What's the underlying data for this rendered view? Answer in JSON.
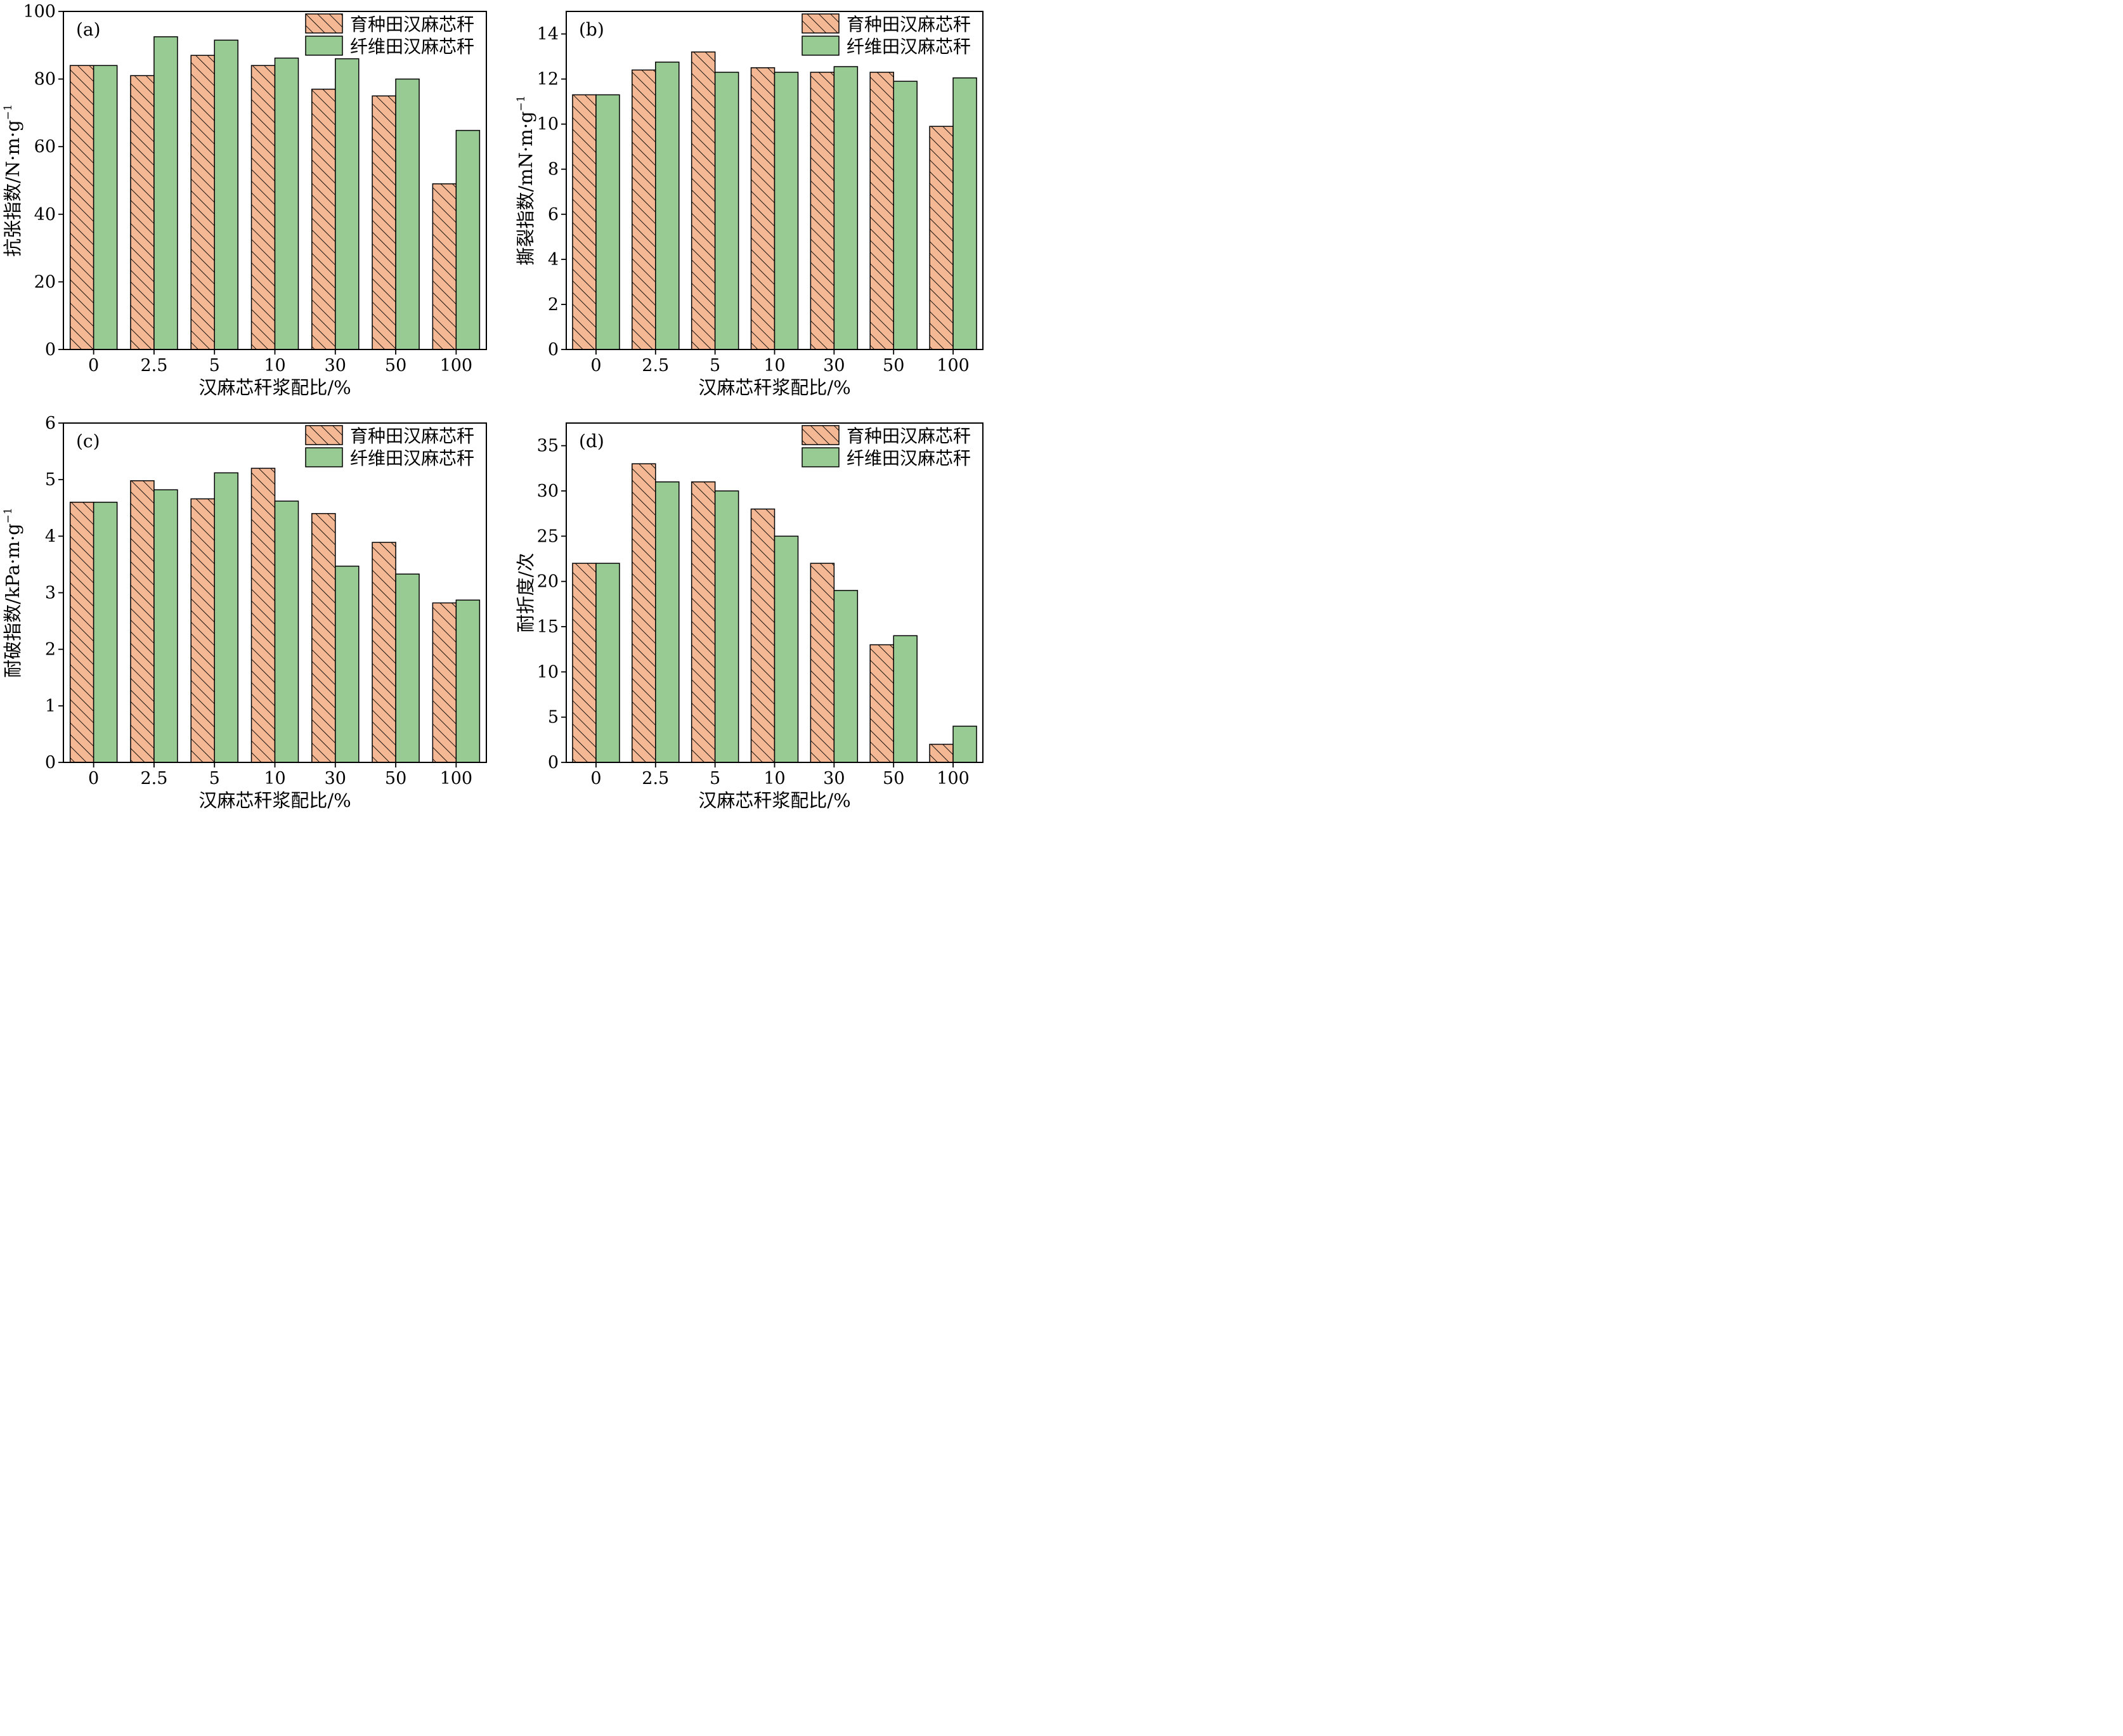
{
  "colors": {
    "breeding_fill": "#f5b894",
    "hatch": "#000000",
    "fiber_fill": "#98cb93",
    "frame": "#000000",
    "background": "#ffffff"
  },
  "chart_data": [
    {
      "type": "bar",
      "panel_label": "(a)",
      "categories": [
        "0",
        "2.5",
        "5",
        "10",
        "30",
        "50",
        "100"
      ],
      "xlabel": "汉麻芯秆浆配比/%",
      "ylabel": "抗张指数/N·m·g",
      "ylabel_sup": "−1",
      "ylim": [
        0,
        100
      ],
      "yticks": [
        0,
        20,
        40,
        60,
        80,
        100
      ],
      "yticks_labels": [
        "0",
        "20",
        "40",
        "60",
        "80",
        "100"
      ],
      "legend_position": "top-right",
      "series": [
        {
          "name": "育种田汉麻芯秆",
          "pattern": "hatched",
          "values": [
            84,
            81,
            87,
            84,
            77,
            75,
            49
          ]
        },
        {
          "name": "纤维田汉麻芯秆",
          "pattern": "solid",
          "values": [
            84,
            92.5,
            91.5,
            86.2,
            86,
            80,
            64.8
          ]
        }
      ]
    },
    {
      "type": "bar",
      "panel_label": "(b)",
      "categories": [
        "0",
        "2.5",
        "5",
        "10",
        "30",
        "50",
        "100"
      ],
      "xlabel": "汉麻芯秆浆配比/%",
      "ylabel": "撕裂指数/mN·m·g",
      "ylabel_sup": "−1",
      "ylim": [
        0,
        15
      ],
      "yticks": [
        0,
        2,
        4,
        6,
        8,
        10,
        12,
        14
      ],
      "yticks_labels": [
        "0",
        "2",
        "4",
        "6",
        "8",
        "10",
        "12",
        "14"
      ],
      "legend_position": "top-right",
      "series": [
        {
          "name": "育种田汉麻芯秆",
          "pattern": "hatched",
          "values": [
            11.3,
            12.4,
            13.2,
            12.5,
            12.3,
            12.3,
            9.9
          ]
        },
        {
          "name": "纤维田汉麻芯秆",
          "pattern": "solid",
          "values": [
            11.3,
            12.75,
            12.3,
            12.3,
            12.55,
            11.9,
            12.05
          ]
        }
      ]
    },
    {
      "type": "bar",
      "panel_label": "(c)",
      "categories": [
        "0",
        "2.5",
        "5",
        "10",
        "30",
        "50",
        "100"
      ],
      "xlabel": "汉麻芯秆浆配比/%",
      "ylabel": "耐破指数/kPa·m·g",
      "ylabel_sup": "−1",
      "ylim": [
        0,
        6
      ],
      "yticks": [
        0,
        1,
        2,
        3,
        4,
        5,
        6
      ],
      "yticks_labels": [
        "0",
        "1",
        "2",
        "3",
        "4",
        "5",
        "6"
      ],
      "legend_position": "top-right",
      "series": [
        {
          "name": "育种田汉麻芯秆",
          "pattern": "hatched",
          "values": [
            4.6,
            4.98,
            4.66,
            5.2,
            4.4,
            3.89,
            2.82
          ]
        },
        {
          "name": "纤维田汉麻芯秆",
          "pattern": "solid",
          "values": [
            4.6,
            4.82,
            5.12,
            4.62,
            3.47,
            3.33,
            2.87
          ]
        }
      ]
    },
    {
      "type": "bar",
      "panel_label": "(d)",
      "categories": [
        "0",
        "2.5",
        "5",
        "10",
        "30",
        "50",
        "100"
      ],
      "xlabel": "汉麻芯秆浆配比/%",
      "ylabel": "耐折度/次",
      "ylabel_sup": "",
      "ylim": [
        0,
        37.5
      ],
      "yticks": [
        0,
        5,
        10,
        15,
        20,
        25,
        30,
        35
      ],
      "yticks_labels": [
        "0",
        "5",
        "10",
        "15",
        "20",
        "25",
        "30",
        "35"
      ],
      "legend_position": "top-right",
      "series": [
        {
          "name": "育种田汉麻芯秆",
          "pattern": "hatched",
          "values": [
            22,
            33,
            31,
            28,
            22,
            13,
            2
          ]
        },
        {
          "name": "纤维田汉麻芯秆",
          "pattern": "solid",
          "values": [
            22,
            31,
            30,
            25,
            19,
            14,
            4
          ]
        }
      ]
    }
  ]
}
